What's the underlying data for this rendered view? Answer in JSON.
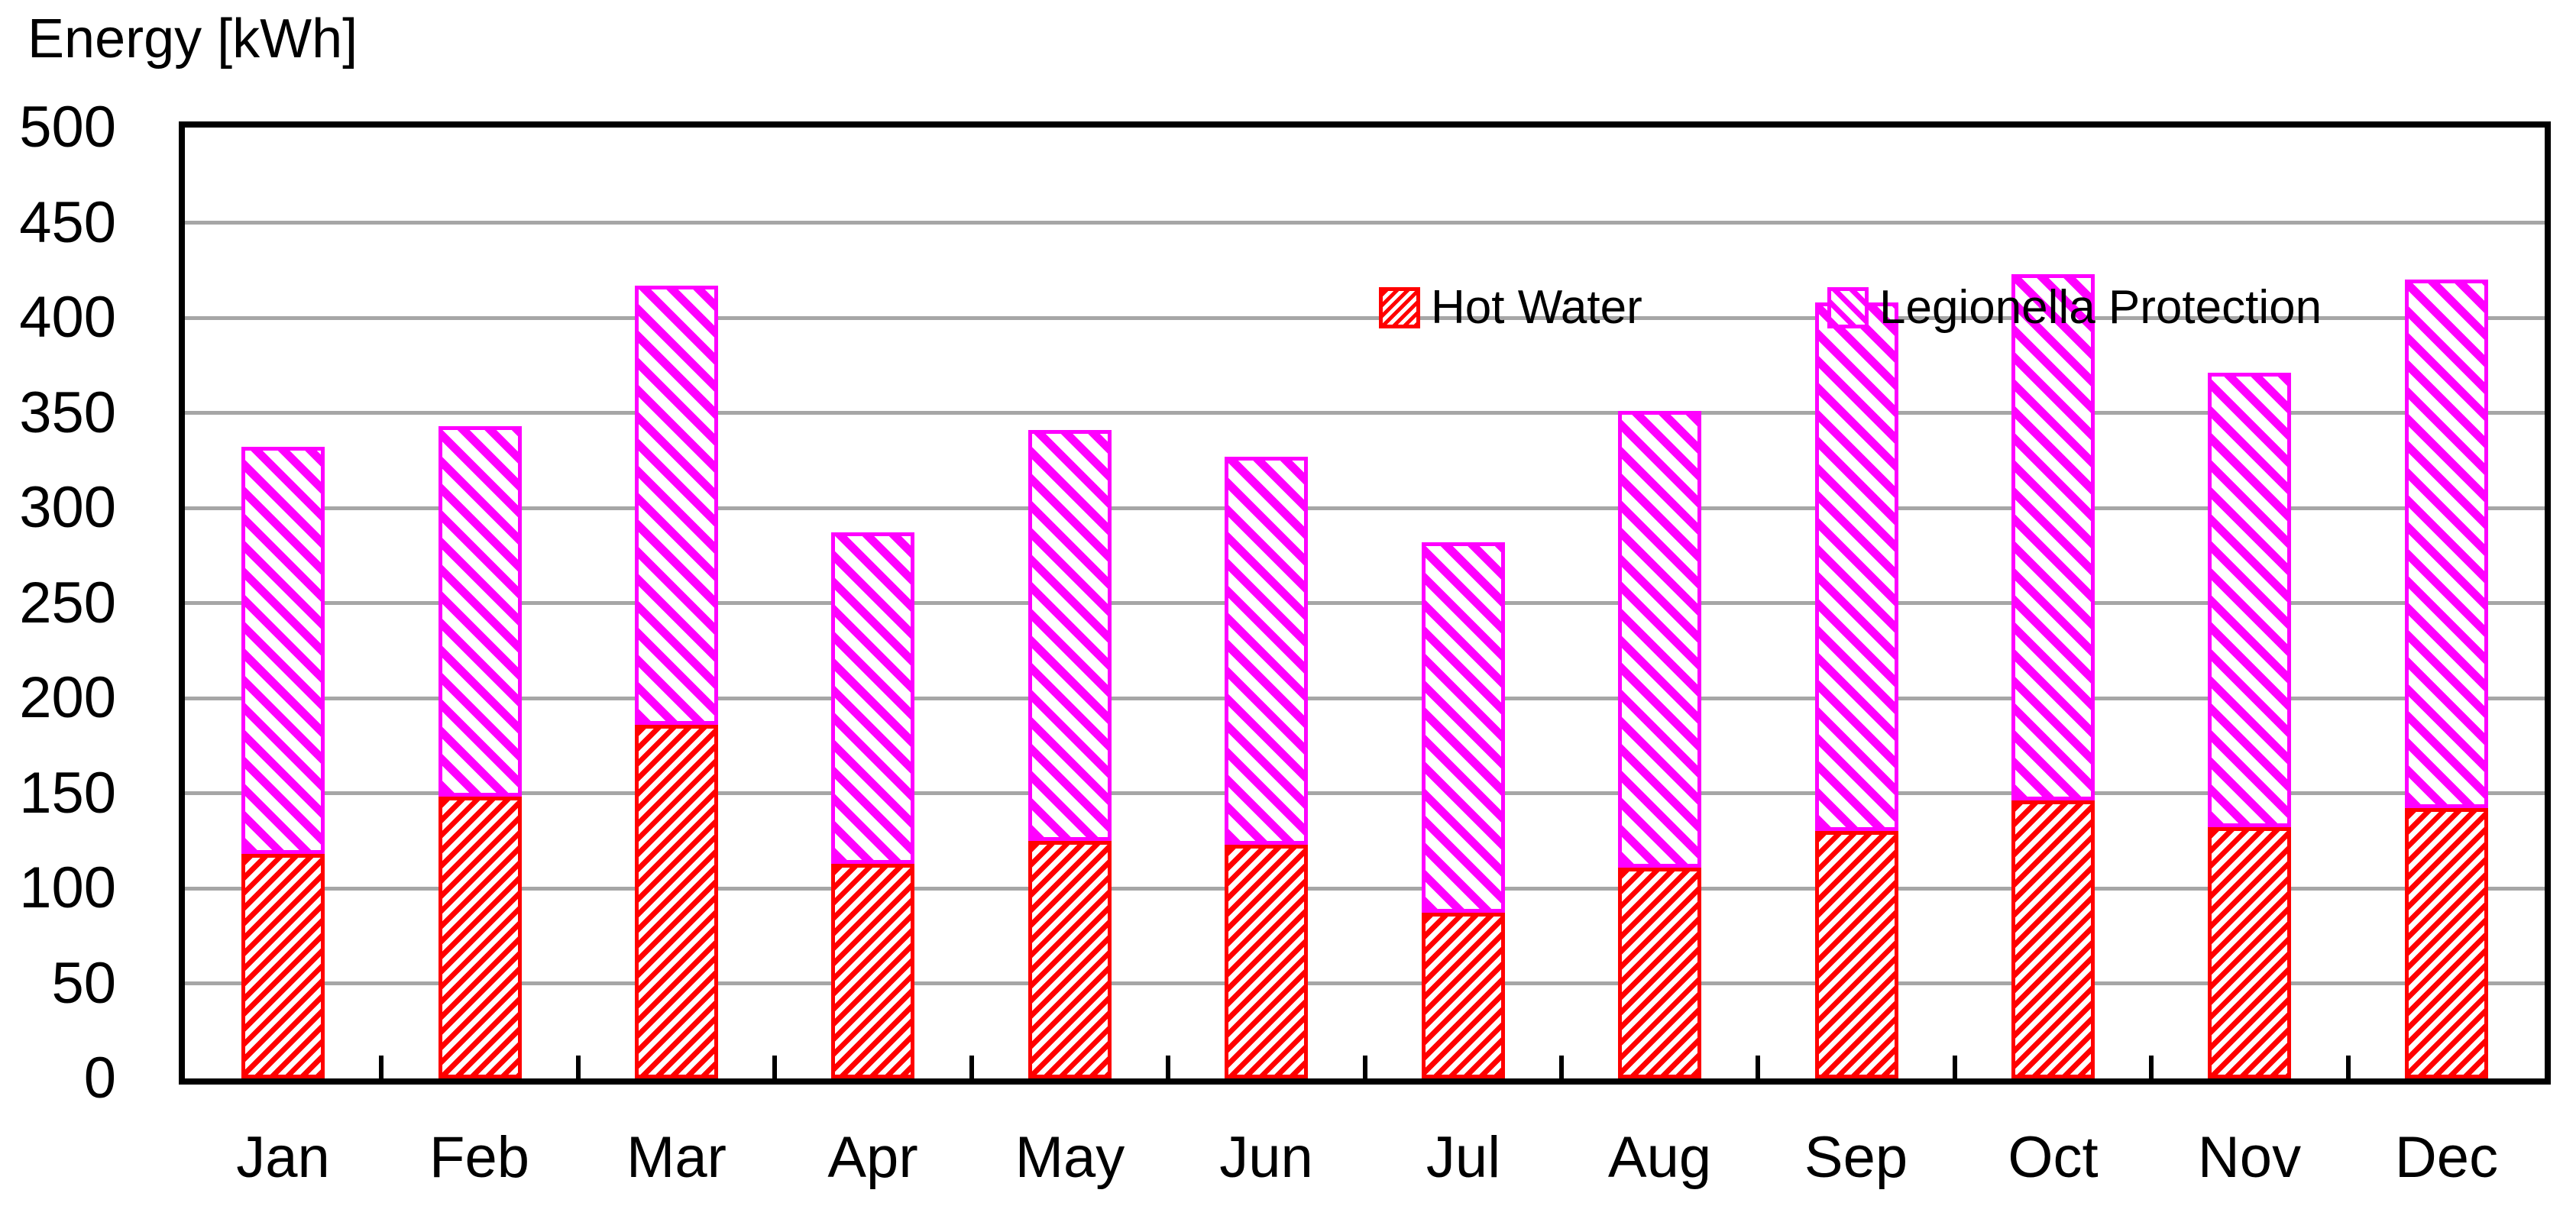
{
  "title": "Energy [kWh]",
  "colors": {
    "hot_water": "#FF0000",
    "legionella_protection": "#FF00FF",
    "gridline": "#A6A6A6",
    "axis": "#000000",
    "background": "#FFFFFF",
    "text": "#000000"
  },
  "legend": {
    "items": [
      {
        "label": "Hot Water"
      },
      {
        "label": "Legionella Protection"
      }
    ]
  },
  "chart_data": {
    "type": "bar",
    "stacked": true,
    "title": "Energy [kWh]",
    "xlabel": "",
    "ylabel": "Energy [kWh]",
    "categories": [
      "Jan",
      "Feb",
      "Mar",
      "Apr",
      "May",
      "Jun",
      "Jul",
      "Aug",
      "Sep",
      "Oct",
      "Nov",
      "Dec"
    ],
    "series": [
      {
        "name": "Hot Water",
        "color": "#FF0000",
        "hatch": "/",
        "values": [
          118,
          148,
          186,
          113,
          125,
          123,
          87,
          111,
          130,
          146,
          132,
          142
        ]
      },
      {
        "name": "Legionella Protection",
        "color": "#FF00FF",
        "hatch": "\\",
        "values": [
          214,
          195,
          231,
          174,
          216,
          204,
          195,
          240,
          278,
          277,
          239,
          278
        ]
      }
    ],
    "stack_totals": [
      332,
      343,
      417,
      287,
      341,
      327,
      282,
      351,
      408,
      423,
      371,
      420
    ],
    "ylim": [
      0,
      500
    ],
    "ytick_step": 50,
    "ytick_labels": [
      "0",
      "50",
      "100",
      "150",
      "200",
      "250",
      "300",
      "350",
      "400",
      "450",
      "500"
    ],
    "grid": true,
    "legend_position": "inside-top-right"
  }
}
